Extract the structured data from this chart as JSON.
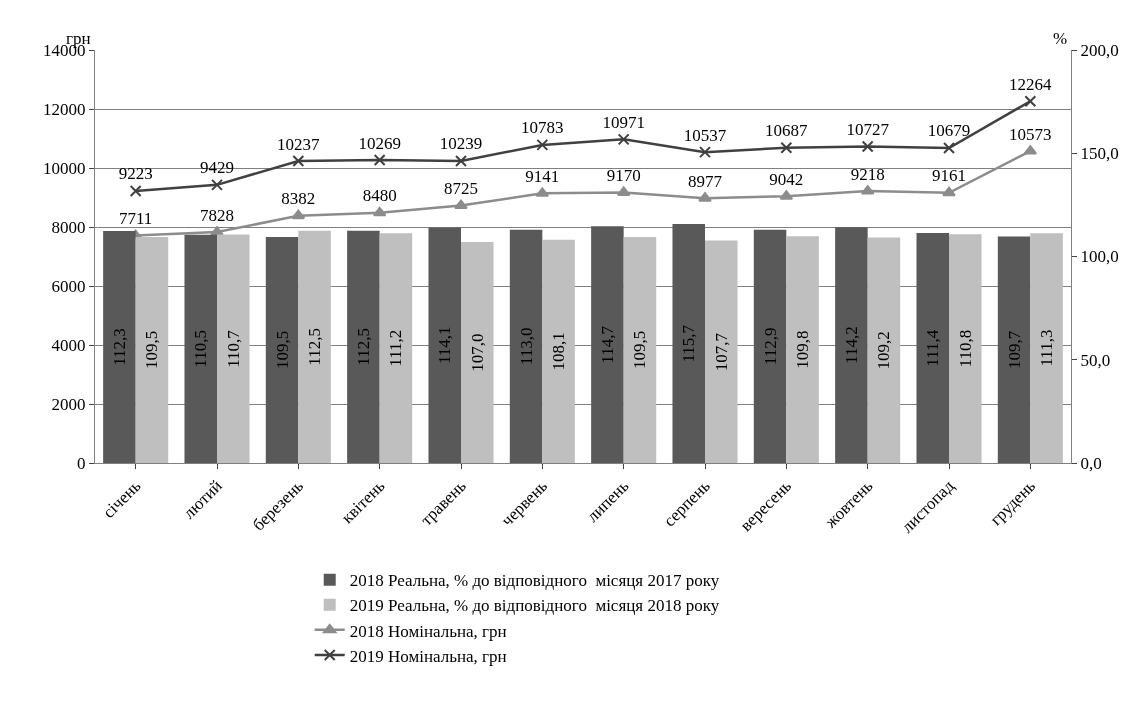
{
  "chart_data": {
    "type": "bar",
    "ylabel": "грн",
    "y2label": "%",
    "categories": [
      "січень",
      "лютий",
      "березень",
      "квітень",
      "травень",
      "червень",
      "липень",
      "серпень",
      "вересень",
      "жовтень",
      "листопад",
      "грудень"
    ],
    "series": [
      {
        "name": "2018 Реальна, % до відповідного  місяця 2017 року",
        "axis": "y2",
        "color": "#595959",
        "values": [
          112.3,
          110.5,
          109.5,
          112.5,
          114.1,
          113.0,
          114.7,
          115.7,
          112.9,
          114.2,
          111.4,
          109.7
        ],
        "value_labels": [
          "112,3",
          "110,5",
          "109,5",
          "112,5",
          "114,1",
          "113,0",
          "114,7",
          "115,7",
          "112,9",
          "114,2",
          "111,4",
          "109,7"
        ]
      },
      {
        "name": "2019 Реальна, % до відповідного  місяця 2018 року",
        "axis": "y2",
        "color": "#bfbfbf",
        "values": [
          109.5,
          110.7,
          112.5,
          111.2,
          107.0,
          108.1,
          109.5,
          107.7,
          109.8,
          109.2,
          110.8,
          111.3
        ],
        "value_labels": [
          "109,5",
          "110,7",
          "112,5",
          "111,2",
          "107,0",
          "108,1",
          "109,5",
          "107,7",
          "109,8",
          "109,2",
          "110,8",
          "111,3"
        ]
      },
      {
        "name": "2018 Номінальна, грн",
        "type": "line",
        "marker": "triangle",
        "color": "#8c8c8c",
        "values": [
          7711,
          7828,
          8382,
          8480,
          8725,
          9141,
          9170,
          8977,
          9042,
          9218,
          9161,
          10573
        ],
        "value_labels": [
          "7711",
          "7828",
          "8382",
          "8480",
          "8725",
          "9141",
          "9170",
          "8977",
          "9042",
          "9218",
          "9161",
          "10573"
        ]
      },
      {
        "name": "2019 Номінальна, грн",
        "type": "line",
        "marker": "cross",
        "color": "#404040",
        "values": [
          9223,
          9429,
          10237,
          10269,
          10239,
          10783,
          10971,
          10537,
          10687,
          10727,
          10679,
          12264
        ],
        "value_labels": [
          "9223",
          "9429",
          "10237",
          "10269",
          "10239",
          "10783",
          "10971",
          "10537",
          "10687",
          "10727",
          "10679",
          "12264"
        ]
      }
    ],
    "ylim": [
      0,
      14000
    ],
    "yticks": [
      0,
      2000,
      4000,
      6000,
      8000,
      10000,
      12000,
      14000
    ],
    "y2lim": [
      0,
      200
    ],
    "y2ticks": [
      {
        "value": 0,
        "label": "0,0"
      },
      {
        "value": 50,
        "label": "50,0"
      },
      {
        "value": 100,
        "label": "100,0"
      },
      {
        "value": 150,
        "label": "150,0"
      },
      {
        "value": 200,
        "label": "200,0"
      }
    ],
    "grid": "y",
    "legend": "bottom"
  }
}
